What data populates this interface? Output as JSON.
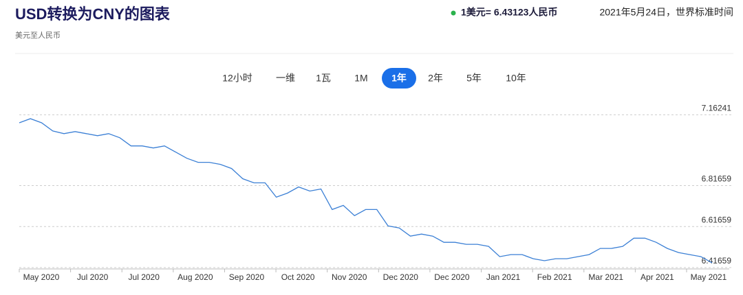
{
  "header": {
    "title": "USD转换为CNY的图表",
    "subtitle": "美元至人民币",
    "rate": "1美元= 6.43123人民币",
    "timestamp": "2021年5月24日，世界标准时间"
  },
  "tabs": {
    "items": [
      "12小时",
      "一维",
      "1瓦",
      "1M",
      "1年",
      "2年",
      "5年",
      "10年"
    ],
    "active": 4
  },
  "chart_data": {
    "type": "line",
    "xticks": [
      "May 2020",
      "Jul 2020",
      "Jul 2020",
      "Aug 2020",
      "Sep 2020",
      "Oct 2020",
      "Nov 2020",
      "Dec 2020",
      "Dec 2020",
      "Jan 2021",
      "Feb 2021",
      "Mar 2021",
      "Apr 2021",
      "May 2021"
    ],
    "series": [
      {
        "color": "#3a7fd5",
        "values": [
          7.123,
          7.143,
          7.123,
          7.083,
          7.07,
          7.08,
          7.07,
          7.06,
          7.07,
          7.05,
          7.01,
          7.01,
          7.0,
          7.01,
          6.98,
          6.95,
          6.93,
          6.93,
          6.92,
          6.9,
          6.85,
          6.83,
          6.83,
          6.76,
          6.78,
          6.81,
          6.79,
          6.8,
          6.7,
          6.72,
          6.67,
          6.7,
          6.7,
          6.62,
          6.61,
          6.57,
          6.58,
          6.57,
          6.54,
          6.54,
          6.53,
          6.53,
          6.52,
          6.47,
          6.48,
          6.48,
          6.46,
          6.45,
          6.46,
          6.46,
          6.47,
          6.48,
          6.51,
          6.51,
          6.52,
          6.56,
          6.56,
          6.54,
          6.51,
          6.49,
          6.48,
          6.47,
          6.44
        ]
      }
    ],
    "ylim": [
      6.41,
      7.22
    ],
    "yticks": [
      6.41659,
      6.61659,
      6.81659,
      7.16241
    ],
    "grid": true
  }
}
